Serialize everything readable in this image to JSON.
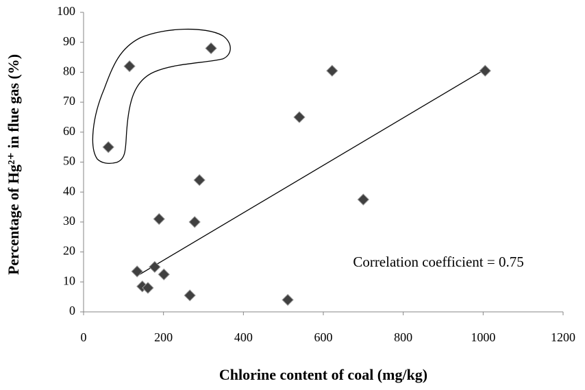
{
  "chart_data": {
    "type": "scatter",
    "xlabel": "Chlorine content of coal (mg/kg)",
    "ylabel": "Percentage of Hg²⁺ in flue gas (%)",
    "annotation": "Correlation coefficient = 0.75",
    "x": [
      62,
      115,
      319,
      622,
      1005,
      540,
      290,
      700,
      189,
      278,
      134,
      178,
      201,
      147,
      161,
      266,
      511
    ],
    "y": [
      55,
      82,
      88,
      80.5,
      80.5,
      65,
      44,
      37.5,
      31,
      30,
      13.5,
      15,
      12.5,
      8.5,
      8,
      5.5,
      4
    ],
    "color": "#404040",
    "trendline": {
      "x": [
        134,
        1005
      ],
      "y": [
        12,
        81
      ]
    },
    "xlim": [
      0,
      1200
    ],
    "xticks": [
      0,
      200,
      400,
      600,
      800,
      1000,
      1200
    ],
    "ylim": [
      0,
      100
    ],
    "yticks": [
      0,
      10,
      20,
      30,
      40,
      50,
      60,
      70,
      80,
      90,
      100
    ],
    "grid": false
  }
}
